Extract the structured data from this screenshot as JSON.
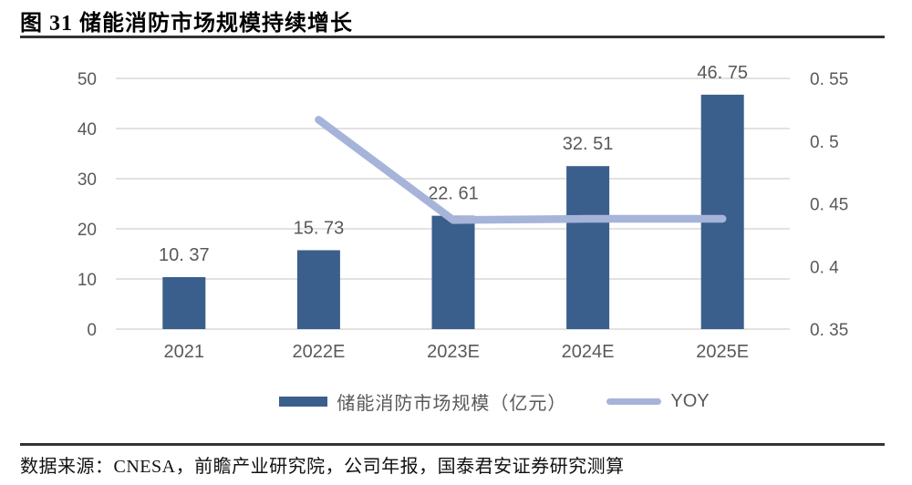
{
  "header": {
    "figure_title": "图 31 储能消防市场规模持续增长"
  },
  "footer": {
    "source": "数据来源：CNESA，前瞻产业研究院，公司年报，国泰君安证券研究测算"
  },
  "chart_data": {
    "type": "bar",
    "combo": "bar+line dual axis",
    "title": "储能消防市场规模持续增长",
    "categories": [
      "2021",
      "2022E",
      "2023E",
      "2024E",
      "2025E"
    ],
    "series": [
      {
        "name": "储能消防市场规模（亿元）",
        "type": "bar",
        "axis": "left",
        "values": [
          10.37,
          15.73,
          22.61,
          32.51,
          46.75
        ],
        "value_labels": [
          "10. 37",
          "15. 73",
          "22. 61",
          "32. 51",
          "46. 75"
        ],
        "color": "#3a5f8c"
      },
      {
        "name": "YOY",
        "type": "line",
        "axis": "right",
        "values": [
          null,
          0.517,
          0.437,
          0.438,
          0.438
        ],
        "color": "#a6b4da"
      }
    ],
    "left_axis": {
      "min": 0,
      "max": 50,
      "tick_values": [
        0,
        10,
        20,
        30,
        40,
        50
      ],
      "tick_labels": [
        "0",
        "10",
        "20",
        "30",
        "40",
        "50"
      ]
    },
    "right_axis": {
      "min": 0.35,
      "max": 0.55,
      "tick_values": [
        0.35,
        0.4,
        0.45,
        0.5,
        0.55
      ],
      "tick_labels": [
        "0. 35",
        "0. 4",
        "0. 45",
        "0. 5",
        "0. 55"
      ]
    },
    "grid": "horizontal gridlines on, color #d9d9d9",
    "legend_position": "bottom",
    "text_color": "#595959"
  }
}
